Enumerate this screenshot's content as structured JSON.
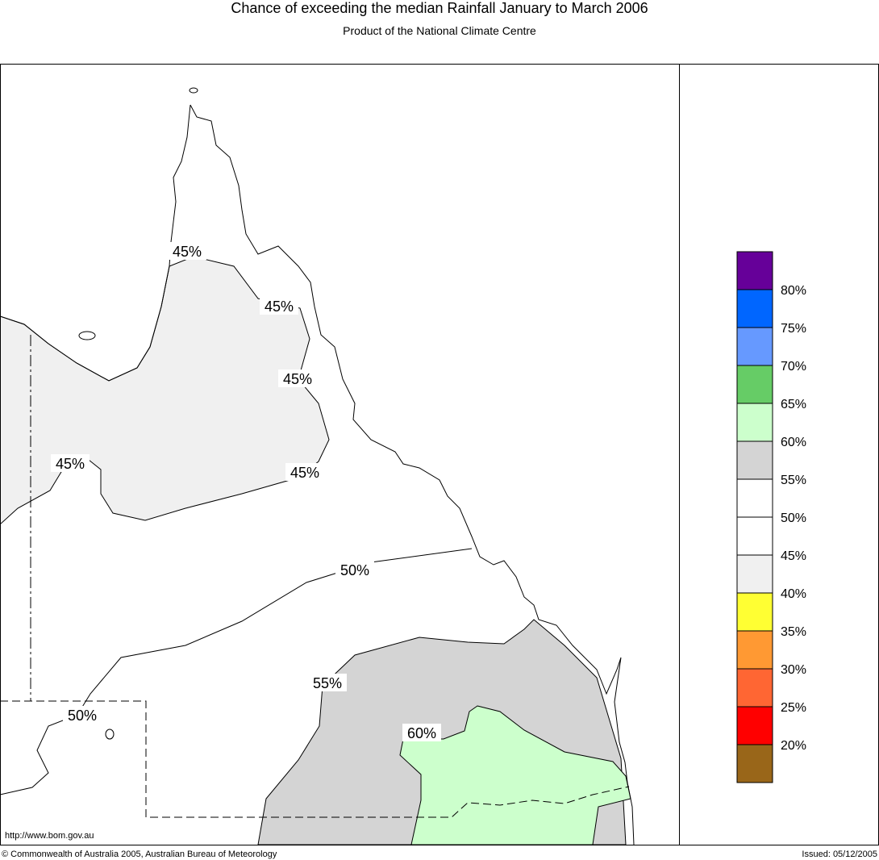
{
  "header": {
    "title": "Chance of exceeding the median Rainfall January to March 2006",
    "subtitle": "Product of the National Climate Centre"
  },
  "map": {
    "contour_labels": [
      "45%",
      "45%",
      "45%",
      "45%",
      "45%",
      "50%",
      "50%",
      "55%",
      "60%"
    ],
    "url": "http://www.bom.gov.au"
  },
  "legend": {
    "colors": [
      "#660099",
      "#0066ff",
      "#6699ff",
      "#66cc66",
      "#ccffcc",
      "#d4d4d4",
      "#ffffff",
      "#ffffff",
      "#f0f0f0",
      "#ffff33",
      "#ff9933",
      "#ff6633",
      "#ff0000",
      "#996619"
    ],
    "labels": [
      "80%",
      "75%",
      "70%",
      "65%",
      "60%",
      "55%",
      "50%",
      "45%",
      "40%",
      "35%",
      "30%",
      "25%",
      "20%"
    ]
  },
  "footer": {
    "copyright": "© Commonwealth of Australia 2005, Australian Bureau of Meteorology",
    "issued": "Issued: 05/12/2005"
  }
}
